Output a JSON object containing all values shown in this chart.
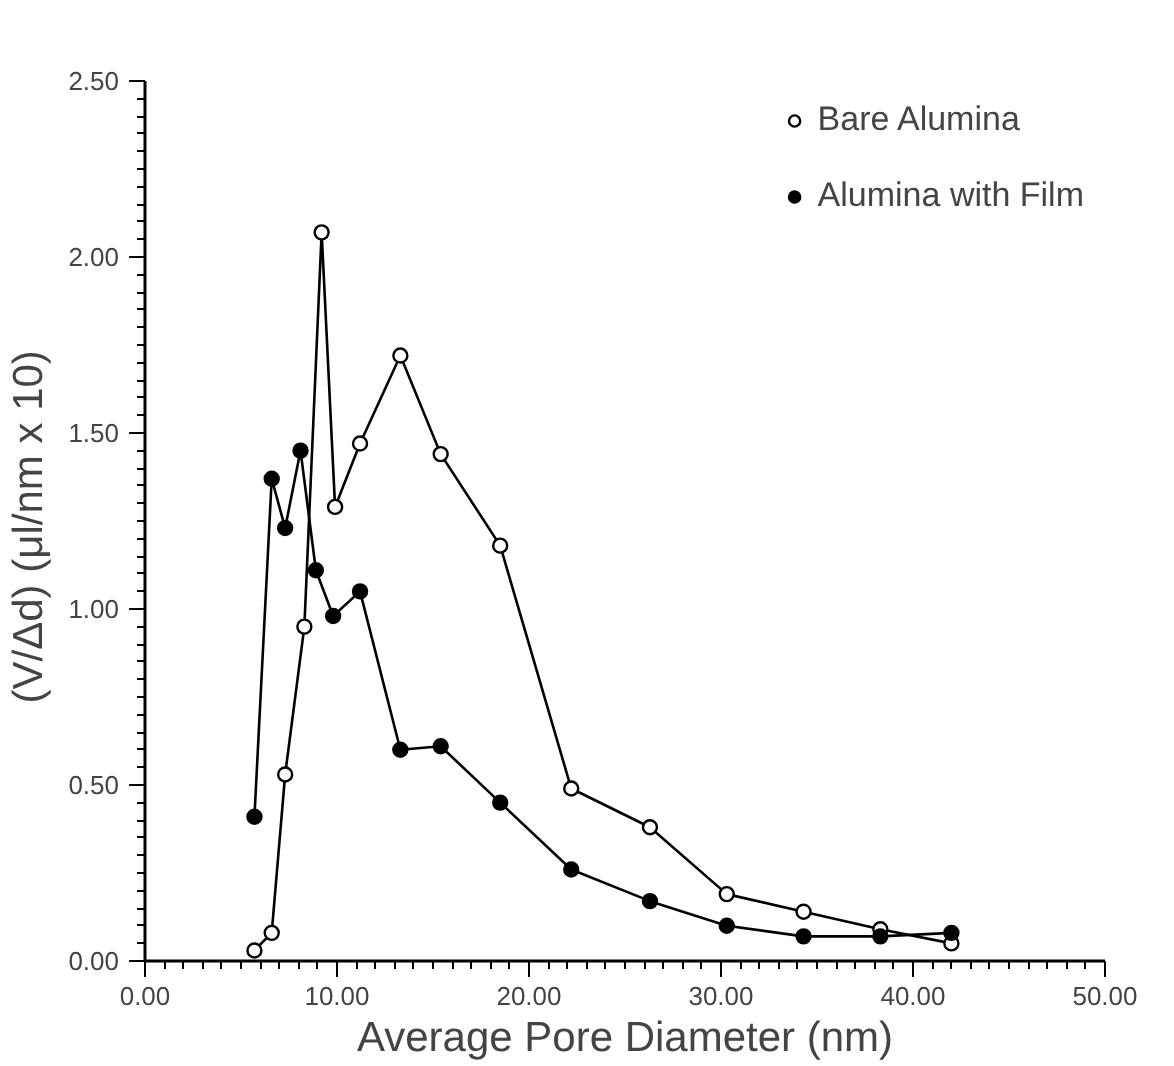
{
  "chart_data": {
    "type": "line",
    "xlabel": "Average Pore Diameter (nm)",
    "ylabel": "(V/Δd)  (μl/nm x 10)",
    "xlim": [
      0,
      50
    ],
    "ylim": [
      0,
      2.5
    ],
    "xticks": [
      {
        "value": 0,
        "label": "0.00"
      },
      {
        "value": 10,
        "label": "10.00"
      },
      {
        "value": 20,
        "label": "20.00"
      },
      {
        "value": 30,
        "label": "30.00"
      },
      {
        "value": 40,
        "label": "40.00"
      },
      {
        "value": 50,
        "label": "50.00"
      }
    ],
    "yticks": [
      {
        "value": 0,
        "label": "0.00"
      },
      {
        "value": 0.5,
        "label": "0.50"
      },
      {
        "value": 1,
        "label": "1.00"
      },
      {
        "value": 1.5,
        "label": "1.50"
      },
      {
        "value": 2,
        "label": "2.00"
      },
      {
        "value": 2.5,
        "label": "2.50"
      }
    ],
    "grid": false,
    "legend": "top right",
    "line_style": "solid",
    "series": [
      {
        "name": "Bare Alumina",
        "color": "#000000",
        "marker": "circle_open",
        "x": [
          5.7,
          6.6,
          7.3,
          8.3,
          9.2,
          9.9,
          11.2,
          13.3,
          15.4,
          18.5,
          22.2,
          26.3,
          30.3,
          34.3,
          38.3,
          42.0
        ],
        "values": [
          0.03,
          0.08,
          0.53,
          0.95,
          2.07,
          1.29,
          1.47,
          1.72,
          1.44,
          1.18,
          0.49,
          0.38,
          0.19,
          0.14,
          0.09,
          0.05
        ]
      },
      {
        "name": "Alumina with Film",
        "color": "#000000",
        "marker": "circle",
        "x": [
          5.7,
          6.6,
          7.3,
          8.1,
          8.9,
          9.8,
          11.2,
          13.3,
          15.4,
          18.5,
          22.2,
          26.3,
          30.3,
          34.3,
          38.3,
          42.0
        ],
        "values": [
          0.41,
          1.37,
          1.23,
          1.45,
          1.11,
          0.98,
          1.05,
          0.6,
          0.61,
          0.45,
          0.26,
          0.17,
          0.1,
          0.07,
          0.07,
          0.08
        ]
      }
    ]
  }
}
